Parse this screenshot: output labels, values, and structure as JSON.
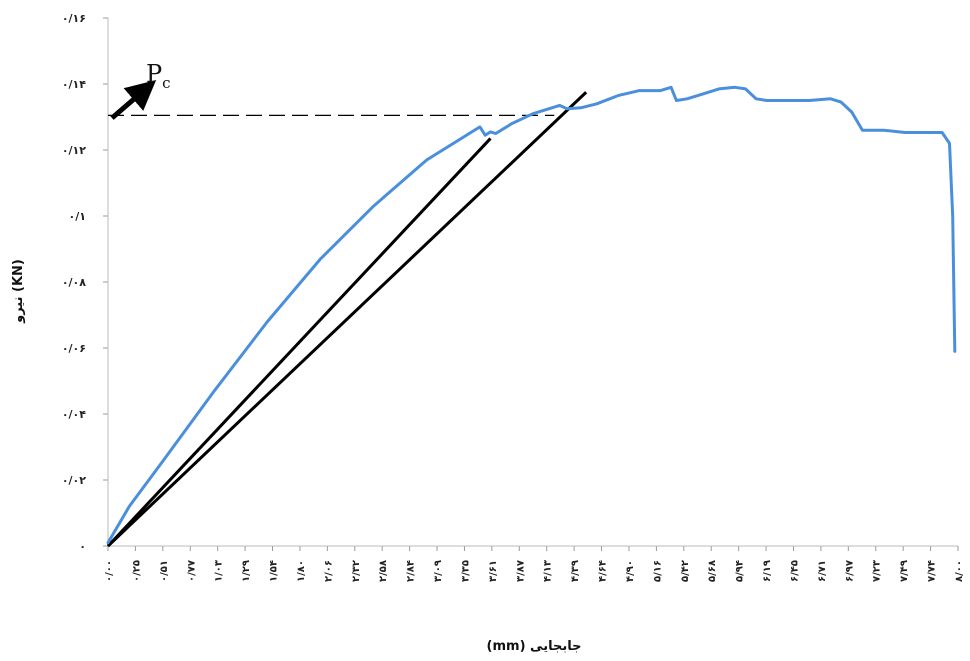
{
  "chart_data": {
    "type": "line",
    "xlabel": "جابجایی (mm)",
    "ylabel": "نیرو (KN)",
    "ylim": [
      0,
      0.16
    ],
    "y_ticks": [
      {
        "value": 0,
        "label": "۰"
      },
      {
        "value": 0.02,
        "label": "۰/۰۲"
      },
      {
        "value": 0.04,
        "label": "۰/۰۴"
      },
      {
        "value": 0.06,
        "label": "۰/۰۶"
      },
      {
        "value": 0.08,
        "label": "۰/۰۸"
      },
      {
        "value": 0.1,
        "label": "۰/۱"
      },
      {
        "value": 0.12,
        "label": "۰/۱۲"
      },
      {
        "value": 0.14,
        "label": "۰/۱۴"
      },
      {
        "value": 0.16,
        "label": "۰/۱۶"
      }
    ],
    "x_tick_labels": [
      "۰/۰۰",
      "۰/۲۵",
      "۰/۵۱",
      "۰/۷۷",
      "۱/۰۳",
      "۱/۲۹",
      "۱/۵۴",
      "۱/۸۰",
      "۲/۰۶",
      "۲/۳۲",
      "۲/۵۸",
      "۲/۸۴",
      "۳/۰۹",
      "۳/۳۵",
      "۳/۶۱",
      "۳/۸۷",
      "۴/۱۳",
      "۴/۳۹",
      "۴/۶۴",
      "۴/۹۰",
      "۵/۱۶",
      "۵/۴۲",
      "۵/۶۸",
      "۵/۹۴",
      "۶/۱۹",
      "۶/۴۵",
      "۶/۷۱",
      "۶/۹۷",
      "۷/۲۳",
      "۷/۴۹",
      "۷/۷۴",
      "۸/۰۰"
    ],
    "xlim": [
      0,
      8
    ],
    "series": [
      {
        "color": "#4a8fdc",
        "x": [
          0,
          0.2,
          0.5,
          1.0,
          1.5,
          2.0,
          2.5,
          3.0,
          3.3,
          3.5,
          3.55,
          3.6,
          3.65,
          3.8,
          4.0,
          4.25,
          4.32,
          4.45,
          4.6,
          4.8,
          5.0,
          5.2,
          5.3,
          5.35,
          5.45,
          5.6,
          5.75,
          5.9,
          6.0,
          6.1,
          6.2,
          6.4,
          6.6,
          6.8,
          6.9,
          7.0,
          7.1,
          7.3,
          7.5,
          7.7,
          7.85,
          7.92,
          7.95,
          7.97
        ],
        "y": [
          0.001,
          0.012,
          0.025,
          0.047,
          0.068,
          0.087,
          0.103,
          0.117,
          0.123,
          0.127,
          0.1245,
          0.1255,
          0.125,
          0.128,
          0.131,
          0.1335,
          0.1325,
          0.1328,
          0.134,
          0.1365,
          0.138,
          0.138,
          0.139,
          0.135,
          0.1355,
          0.137,
          0.1385,
          0.139,
          0.1385,
          0.1355,
          0.135,
          0.135,
          0.135,
          0.1355,
          0.1345,
          0.1315,
          0.126,
          0.126,
          0.1253,
          0.1253,
          0.1253,
          0.122,
          0.1,
          0.059
        ]
      }
    ],
    "tangent_lines": [
      {
        "x": [
          0,
          3.6
        ],
        "y": [
          0,
          0.1235
        ]
      },
      {
        "x": [
          0,
          4.5
        ],
        "y": [
          0,
          0.1375
        ]
      }
    ],
    "reference_line": {
      "y": 0.1305,
      "x_end": 4.2,
      "style": "dashed"
    },
    "annotation": {
      "main": "P",
      "sub": "c"
    },
    "grid": false,
    "legend": "none"
  }
}
